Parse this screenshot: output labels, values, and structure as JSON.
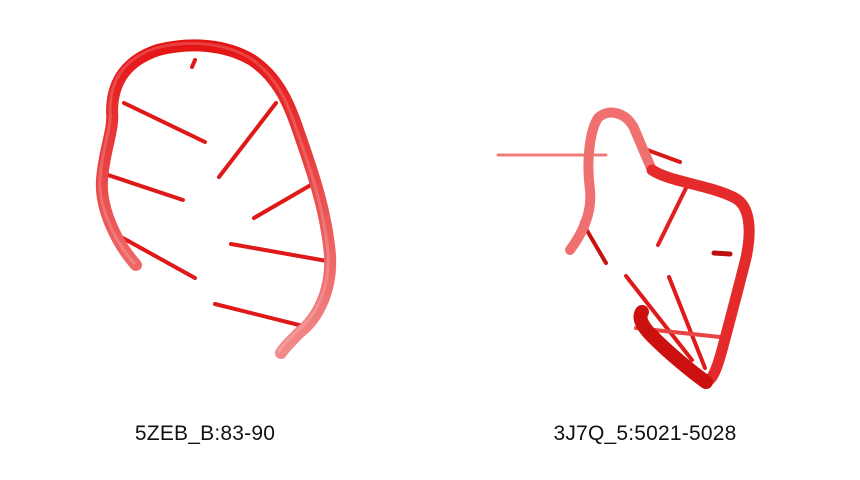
{
  "panels": [
    {
      "label": "5ZEB_B:83-90",
      "color": "#e01010"
    },
    {
      "label": "3J7Q_5:5021-5028",
      "color": "#e01010"
    }
  ]
}
